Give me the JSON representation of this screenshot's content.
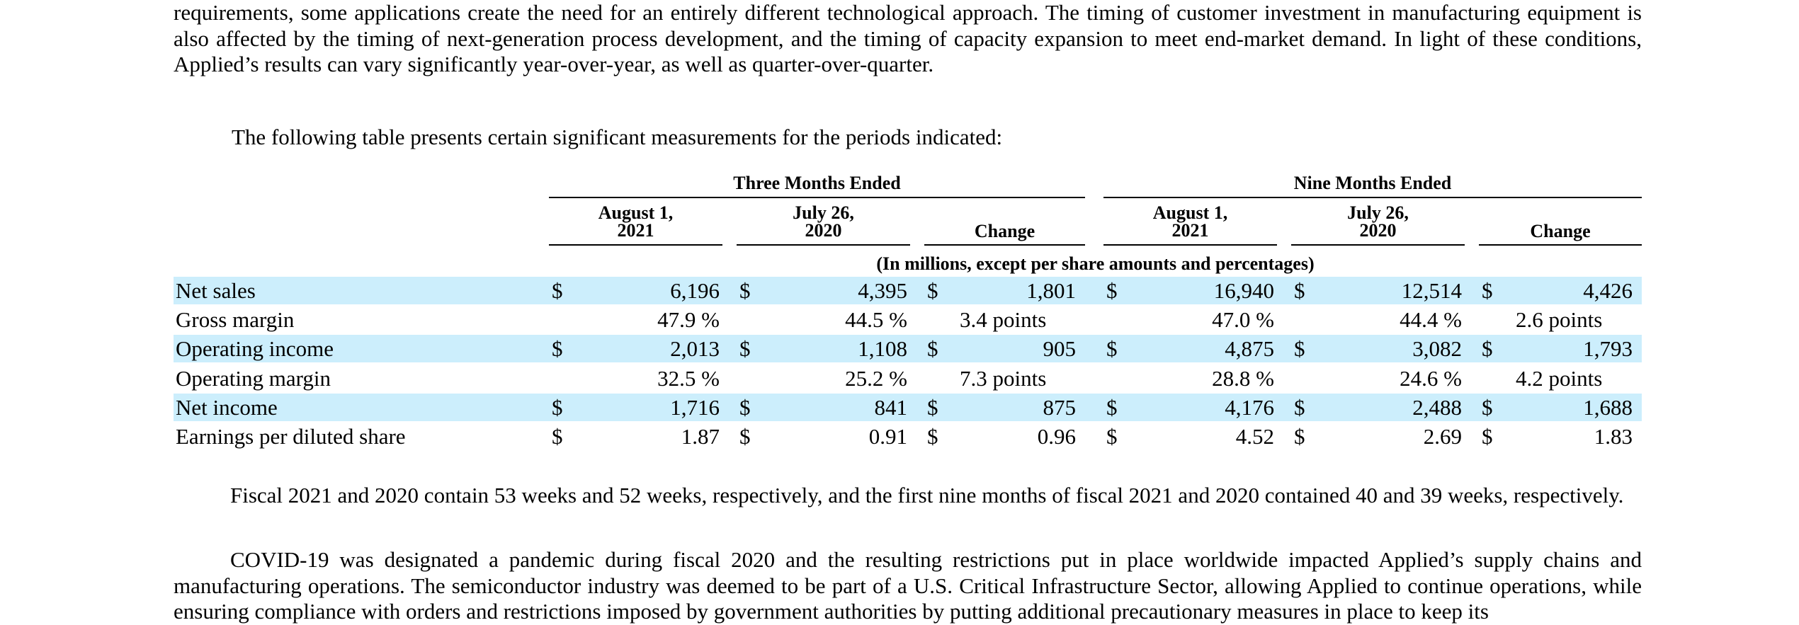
{
  "intro_paragraph": "requirements, some applications create the need for an entirely different technological approach. The timing of customer investment in manufacturing equipment is also affected by the timing of next-generation process development, and the timing of capacity expansion to meet end-market demand. In light of these conditions, Applied’s results can vary significantly year-over-year, as well as quarter-over-quarter.",
  "table_intro": "The following table presents certain significant measurements for the periods indicated:",
  "table": {
    "group_headers": {
      "three_months": "Three Months Ended",
      "nine_months": "Nine Months Ended"
    },
    "column_headers": {
      "c1": [
        "August 1,",
        "2021"
      ],
      "c2": [
        "July 26,",
        "2020"
      ],
      "c3": "Change",
      "c4": [
        "August 1,",
        "2021"
      ],
      "c5": [
        "July 26,",
        "2020"
      ],
      "c6": "Change"
    },
    "units_note": "(In millions, except per share amounts and percentages)",
    "rows": [
      {
        "label": "Net sales",
        "cells": [
          [
            "$",
            "6,196"
          ],
          [
            "$",
            "4,395"
          ],
          [
            "$",
            "1,801"
          ],
          [
            "$",
            "16,940"
          ],
          [
            "$",
            "12,514"
          ],
          [
            "$",
            "4,426"
          ]
        ]
      },
      {
        "label": "Gross margin",
        "cells": [
          [
            "",
            "47.9 %"
          ],
          [
            "",
            "44.5 %"
          ],
          [
            "",
            "3.4 points"
          ],
          [
            "",
            "47.0 %"
          ],
          [
            "",
            "44.4 %"
          ],
          [
            "",
            "2.6 points"
          ]
        ]
      },
      {
        "label": "Operating income",
        "cells": [
          [
            "$",
            "2,013"
          ],
          [
            "$",
            "1,108"
          ],
          [
            "$",
            "905"
          ],
          [
            "$",
            "4,875"
          ],
          [
            "$",
            "3,082"
          ],
          [
            "$",
            "1,793"
          ]
        ]
      },
      {
        "label": "Operating margin",
        "cells": [
          [
            "",
            "32.5 %"
          ],
          [
            "",
            "25.2 %"
          ],
          [
            "",
            "7.3 points"
          ],
          [
            "",
            "28.8 %"
          ],
          [
            "",
            "24.6 %"
          ],
          [
            "",
            "4.2 points"
          ]
        ]
      },
      {
        "label": "Net income",
        "cells": [
          [
            "$",
            "1,716"
          ],
          [
            "$",
            "841"
          ],
          [
            "$",
            "875"
          ],
          [
            "$",
            "4,176"
          ],
          [
            "$",
            "2,488"
          ],
          [
            "$",
            "1,688"
          ]
        ]
      },
      {
        "label": "Earnings per diluted share",
        "cells": [
          [
            "$",
            "1.87"
          ],
          [
            "$",
            "0.91"
          ],
          [
            "$",
            "0.96"
          ],
          [
            "$",
            "4.52"
          ],
          [
            "$",
            "2.69"
          ],
          [
            "$",
            "1.83"
          ]
        ]
      }
    ]
  },
  "fiscal_paragraph": "Fiscal 2021 and 2020 contain 53 weeks and 52 weeks, respectively, and the first nine months of fiscal 2021 and 2020 contained 40 and 39 weeks, respectively.",
  "covid_paragraph": "COVID-19 was designated a pandemic during fiscal 2020 and the resulting restrictions put in place worldwide impacted Applied’s supply chains and manufacturing operations. The semiconductor industry was deemed to be part of a U.S. Critical Infrastructure Sector, allowing Applied to continue operations, while ensuring compliance with orders and restrictions imposed by government authorities by putting additional precautionary measures in place to keep its",
  "colors": {
    "row_highlight": "#cceefc",
    "text": "#000000"
  }
}
